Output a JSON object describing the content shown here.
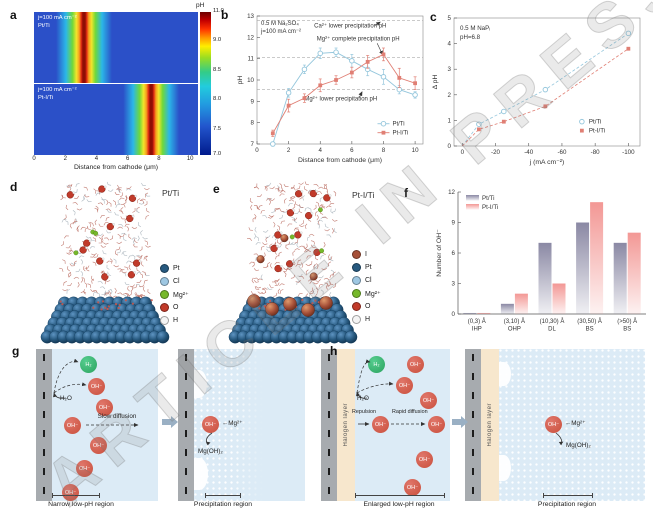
{
  "watermark": "ARTICLE IN PRESS",
  "icons": {
    "left_arrow": "←"
  },
  "panels": {
    "a": {
      "label": "a",
      "colorbar_title": "pH",
      "colorbar_ticks": [
        "11.0",
        "9.0",
        "8.5",
        "8.0",
        "7.5",
        "7.0"
      ],
      "xlabel": "Distance from cathode (μm)",
      "xticks": [
        "0",
        "2",
        "4",
        "6",
        "8",
        "10"
      ],
      "maps": [
        {
          "condition": "j=100 mA cm⁻²",
          "electrode": "Pt/Ti",
          "peak_um": 3.2
        },
        {
          "condition": "j=100 mA cm⁻²",
          "electrode": "Pt-I/Ti",
          "peak_um": 7.5
        }
      ]
    },
    "b": {
      "label": "b"
    },
    "c": {
      "label": "c"
    },
    "d": {
      "label": "d",
      "title": "Pt/Ti",
      "legend": [
        {
          "name": "Pt",
          "color": "#27597f"
        },
        {
          "name": "Cl",
          "color": "#9ec7e2"
        },
        {
          "name": "Mg²⁺",
          "color": "#76b82a"
        },
        {
          "name": "O",
          "color": "#c13a2a"
        },
        {
          "name": "H",
          "color": "#f4f4f4"
        }
      ]
    },
    "e": {
      "label": "e",
      "title": "Pt-I/Ti",
      "legend": [
        {
          "name": "I",
          "color": "#a65038"
        },
        {
          "name": "Pt",
          "color": "#27597f"
        },
        {
          "name": "Cl",
          "color": "#9ec7e2"
        },
        {
          "name": "Mg²⁺",
          "color": "#76b82a"
        },
        {
          "name": "O",
          "color": "#c13a2a"
        },
        {
          "name": "H",
          "color": "#f4f4f4"
        }
      ]
    },
    "f": {
      "label": "f"
    },
    "g": {
      "label": "g",
      "left": {
        "gas": "H₂",
        "water": "H₂O",
        "ion": "OH⁻",
        "diffusion": "Slow diffusion",
        "region": "Narrow low-pH region"
      },
      "right": {
        "ion": "OH⁻",
        "counter_ion": "Mg²⁺",
        "product": "Mg(OH)₂",
        "region": "Precipitation region"
      }
    },
    "h": {
      "label": "h",
      "left": {
        "halogen": "Halogen layer",
        "gas": "H₂",
        "water": "H₂O",
        "repulsion": "Repulsion",
        "diffusion": "Rapid diffusion",
        "ion": "OH⁻",
        "region": "Enlarged low-pH region"
      },
      "right": {
        "halogen": "Halogen layer",
        "ion": "OH⁻",
        "counter_ion": "Mg²⁺",
        "product": "Mg(OH)₂",
        "region": "Precipitation region"
      }
    }
  },
  "chart_data": [
    {
      "id": "panel-b",
      "type": "line",
      "xlabel": "Distance from cathode (μm)",
      "ylabel": "pH",
      "xlim": [
        0,
        10.5
      ],
      "ylim": [
        7,
        13
      ],
      "xticks": [
        0,
        2,
        4,
        6,
        8,
        10
      ],
      "yticks": [
        7,
        8,
        9,
        10,
        11,
        12,
        13
      ],
      "conditions": [
        "0.5 M Na₂SO₄",
        "j=100 mA cm⁻²"
      ],
      "ref_lines": [
        {
          "y": 12.8,
          "label": "Ca²⁺ lower precipitation pH"
        },
        {
          "y": 11.05,
          "label": "Mg²⁺ complete precipitation pH"
        },
        {
          "y": 9.55,
          "label": "Mg²⁺ lower precipitation pH"
        }
      ],
      "series": [
        {
          "name": "Pt/Ti",
          "color": "#94c6dc",
          "marker": "open-circle",
          "x": [
            1,
            2,
            3,
            4,
            5,
            6,
            7,
            8,
            9,
            10
          ],
          "y": [
            7.0,
            9.4,
            10.5,
            11.25,
            11.3,
            10.9,
            10.5,
            10.15,
            9.55,
            9.3
          ],
          "yerr": [
            0.1,
            0.2,
            0.2,
            0.25,
            0.2,
            0.3,
            0.3,
            0.35,
            0.2,
            0.15
          ]
        },
        {
          "name": "Pt-I/Ti",
          "color": "#e07f74",
          "marker": "filled-square",
          "x": [
            1,
            2,
            3,
            4,
            5,
            6,
            7,
            8,
            9,
            10
          ],
          "y": [
            7.5,
            8.8,
            9.15,
            9.75,
            10.0,
            10.35,
            10.85,
            11.2,
            10.1,
            9.85
          ],
          "yerr": [
            0.15,
            0.3,
            0.2,
            0.3,
            0.2,
            0.25,
            0.3,
            0.3,
            0.45,
            0.3
          ]
        }
      ]
    },
    {
      "id": "panel-c",
      "type": "line",
      "xlabel": "j (mA cm⁻²)",
      "ylabel": "Δ pH",
      "xlim": [
        5,
        -107
      ],
      "ylim": [
        0,
        5
      ],
      "xticks": [
        0,
        -20,
        -40,
        -60,
        -80,
        -100
      ],
      "yticks": [
        0,
        1,
        2,
        3,
        4,
        5
      ],
      "conditions": [
        "0.5 M NaPᵢ",
        "pH=6.8"
      ],
      "series": [
        {
          "name": "Pt/Ti",
          "color": "#94c6dc",
          "marker": "open-circle",
          "dashed": true,
          "x": [
            0,
            -10,
            -25,
            -50,
            -100
          ],
          "y": [
            0,
            0.85,
            1.35,
            2.2,
            4.4
          ]
        },
        {
          "name": "Pt-I/Ti",
          "color": "#e07f74",
          "marker": "filled-square",
          "dashed": true,
          "x": [
            0,
            -10,
            -25,
            -50,
            -100
          ],
          "y": [
            0,
            0.65,
            0.95,
            1.55,
            3.8
          ]
        }
      ]
    },
    {
      "id": "panel-f",
      "type": "bar",
      "ylabel": "Number of OH⁻",
      "ylim": [
        0,
        12
      ],
      "yticks": [
        0,
        3,
        6,
        9,
        12
      ],
      "categories": [
        {
          "range": "(0,3) Å",
          "zone": "IHP"
        },
        {
          "range": "(3,10) Å",
          "zone": "OHP"
        },
        {
          "range": "(10,30) Å",
          "zone": "DL"
        },
        {
          "range": "(30,50) Å",
          "zone": "BS"
        },
        {
          "range": "(>50) Å",
          "zone": "BS"
        }
      ],
      "series": [
        {
          "name": "Pt/Ti",
          "color": "#84829f",
          "values": [
            0.1,
            1,
            7,
            9,
            7
          ]
        },
        {
          "name": "Pt-I/Ti",
          "color": "#f2928f",
          "values": [
            0.1,
            2,
            3,
            11,
            8
          ]
        }
      ]
    }
  ]
}
